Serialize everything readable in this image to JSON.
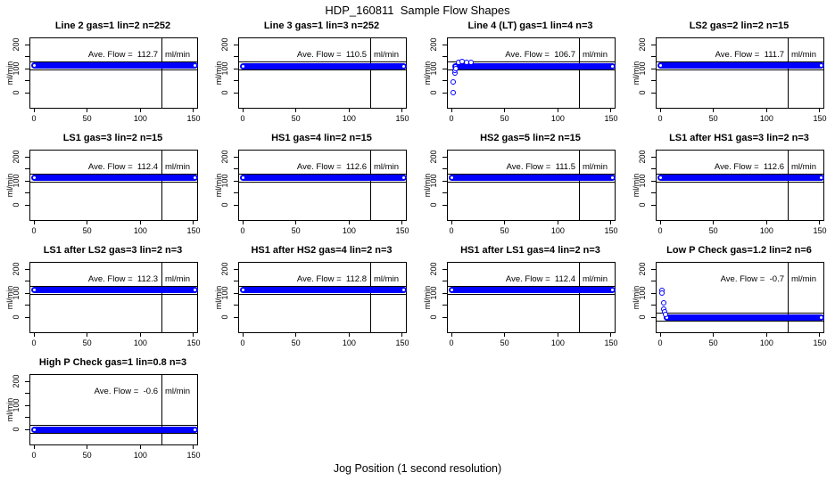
{
  "figure": {
    "title": "HDP_160811  Sample Flow Shapes",
    "xlabel": "Jog Position (1 second resolution)"
  },
  "chart_config": {
    "type": "scatter",
    "ylabel": "ml/min",
    "xlim": [
      -5,
      156
    ],
    "ylim": [
      -63,
      226
    ],
    "x_ticks": [
      0,
      50,
      100,
      150
    ],
    "y_ticks_major": [
      0,
      100,
      200
    ],
    "y_ticks_minor": [
      50,
      150
    ],
    "vline_x": 120,
    "grid": false,
    "legend": "none",
    "point_color": "#0000FF",
    "line_color": "#000000",
    "background": "#FFFFFF",
    "ave_unit_label": "ml/min"
  },
  "chart_data": [
    {
      "key": "line-2",
      "title": "Line 2 gas=1 lin=2 n=252",
      "ave_flow": 112.7,
      "ave_text": "Ave. Flow =  112.7",
      "band_y": 112.7,
      "band_x": [
        0,
        151
      ],
      "extra_points": []
    },
    {
      "key": "line-3",
      "title": "Line 3 gas=1 lin=3 n=252",
      "ave_flow": 110.5,
      "ave_text": "Ave. Flow =  110.5",
      "band_y": 110.5,
      "band_x": [
        0,
        151
      ],
      "extra_points": []
    },
    {
      "key": "line-4-lt",
      "title": "Line 4 (LT) gas=1 lin=4 n=3",
      "ave_flow": 106.7,
      "ave_text": "Ave. Flow =  106.7",
      "band_y": 110,
      "band_x": [
        4,
        151
      ],
      "extra_points": [
        [
          2,
          0
        ],
        [
          2,
          46
        ],
        [
          3,
          82
        ],
        [
          3,
          92
        ],
        [
          4,
          100
        ],
        [
          7,
          127
        ],
        [
          10,
          129
        ],
        [
          14,
          126
        ],
        [
          18,
          127
        ]
      ]
    },
    {
      "key": "ls2",
      "title": "LS2 gas=2 lin=2 n=15",
      "ave_flow": 111.7,
      "ave_text": "Ave. Flow =  111.7",
      "band_y": 111.7,
      "band_x": [
        0,
        151
      ],
      "extra_points": []
    },
    {
      "key": "ls1",
      "title": "LS1 gas=3 lin=2 n=15",
      "ave_flow": 112.4,
      "ave_text": "Ave. Flow =  112.4",
      "band_y": 112.4,
      "band_x": [
        0,
        151
      ],
      "extra_points": []
    },
    {
      "key": "hs1",
      "title": "HS1 gas=4 lin=2 n=15",
      "ave_flow": 112.6,
      "ave_text": "Ave. Flow =  112.6",
      "band_y": 112.6,
      "band_x": [
        0,
        151
      ],
      "extra_points": []
    },
    {
      "key": "hs2",
      "title": "HS2 gas=5 lin=2 n=15",
      "ave_flow": 111.5,
      "ave_text": "Ave. Flow =  111.5",
      "band_y": 111.5,
      "band_x": [
        0,
        151
      ],
      "extra_points": []
    },
    {
      "key": "ls1-after-hs1",
      "title": "LS1 after HS1 gas=3 lin=2 n=3",
      "ave_flow": 112.6,
      "ave_text": "Ave. Flow =  112.6",
      "band_y": 112.6,
      "band_x": [
        0,
        151
      ],
      "extra_points": []
    },
    {
      "key": "ls1-after-ls2",
      "title": "LS1 after LS2 gas=3 lin=2 n=3",
      "ave_flow": 112.3,
      "ave_text": "Ave. Flow =  112.3",
      "band_y": 112.3,
      "band_x": [
        0,
        151
      ],
      "extra_points": []
    },
    {
      "key": "hs1-after-hs2",
      "title": "HS1 after HS2 gas=4 lin=2 n=3",
      "ave_flow": 112.8,
      "ave_text": "Ave. Flow =  112.8",
      "band_y": 112.8,
      "band_x": [
        0,
        151
      ],
      "extra_points": []
    },
    {
      "key": "hs1-after-ls1",
      "title": "HS1 after LS1 gas=4 lin=2 n=3",
      "ave_flow": 112.4,
      "ave_text": "Ave. Flow =  112.4",
      "band_y": 112.4,
      "band_x": [
        0,
        151
      ],
      "extra_points": []
    },
    {
      "key": "low-p-check",
      "title": "Low P Check gas=1.2 lin=2 n=6",
      "ave_flow": -0.7,
      "ave_text": "Ave. Flow =  -0.7",
      "band_y": 0,
      "band_x": [
        6,
        151
      ],
      "extra_points": [
        [
          2,
          113
        ],
        [
          2,
          99
        ],
        [
          3,
          58
        ],
        [
          3,
          34
        ],
        [
          4,
          22
        ],
        [
          5,
          13
        ]
      ]
    },
    {
      "key": "high-p-check",
      "title": "High P Check gas=1 lin=0.8 n=3",
      "ave_flow": -0.6,
      "ave_text": "Ave. Flow =  -0.6",
      "band_y": 0,
      "band_x": [
        0,
        151
      ],
      "extra_points": []
    }
  ]
}
